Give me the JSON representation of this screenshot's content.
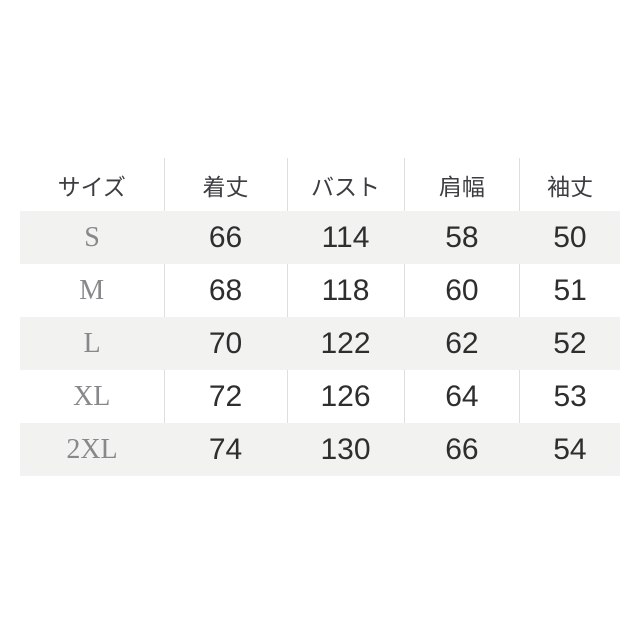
{
  "chart_data": {
    "type": "table",
    "columns": [
      "サイズ",
      "着丈",
      "バスト",
      "肩幅",
      "袖丈"
    ],
    "rows": [
      [
        "S",
        66,
        114,
        58,
        50
      ],
      [
        "M",
        68,
        118,
        60,
        51
      ],
      [
        "L",
        70,
        122,
        62,
        52
      ],
      [
        "XL",
        72,
        126,
        64,
        53
      ],
      [
        "2XL",
        74,
        130,
        66,
        54
      ]
    ],
    "layout": {
      "striped_rows": [
        "S",
        "L",
        "2XL"
      ],
      "grid": "vertical-dividers-on-white-rows-only",
      "legend_position": "none"
    }
  },
  "colors": {
    "page_bg": "#ffffff",
    "stripe_bg": "#f2f2f0",
    "divider": "#dedede",
    "header_text": "#3c3c42",
    "size_text": "#88888c",
    "value_text": "#2e2e2e"
  }
}
